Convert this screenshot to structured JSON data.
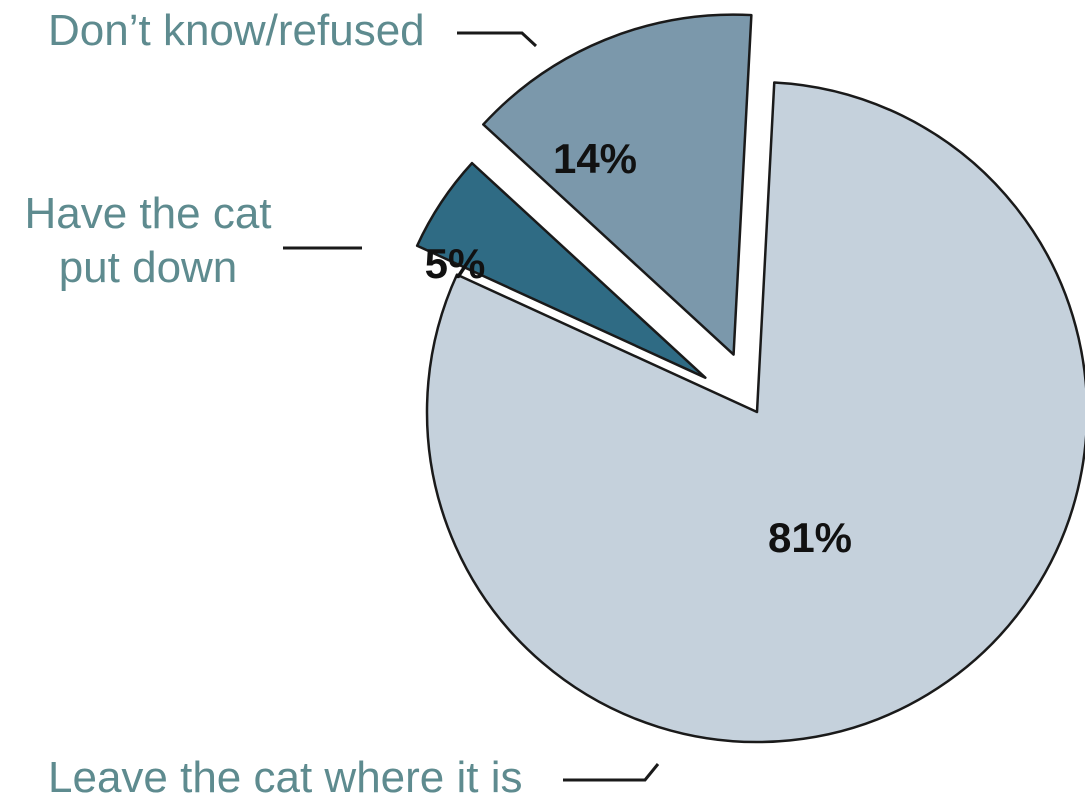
{
  "chart_data": {
    "type": "pie",
    "title": "",
    "slices": [
      {
        "label": "Leave the cat where it is",
        "value": 81,
        "value_label": "81%",
        "color": "#c5d1dc"
      },
      {
        "label": "Have the cat put down",
        "value": 5,
        "value_label": "5%",
        "color": "#2f6b84"
      },
      {
        "label": "Don’t know/refused",
        "value": 14,
        "value_label": "14%",
        "color": "#7b98ab"
      }
    ],
    "label_color": "#5e8b8f",
    "exploded": true
  }
}
